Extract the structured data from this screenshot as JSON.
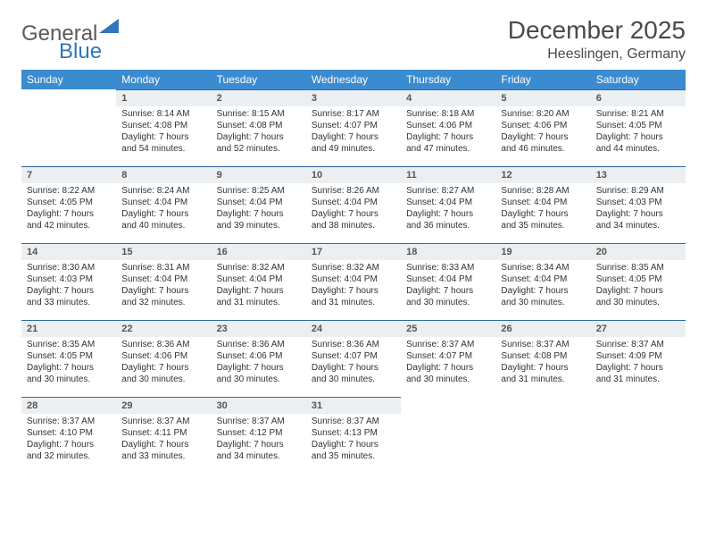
{
  "logo": {
    "general": "General",
    "blue": "Blue"
  },
  "header": {
    "title": "December 2025",
    "location": "Heeslingen, Germany"
  },
  "colors": {
    "header_bg": "#3b8bd0",
    "daynum_bg": "#eceff1",
    "row_divider": "#2f6aa5",
    "logo_gray": "#5a5a5a",
    "logo_blue": "#2f76bb"
  },
  "weekdays": [
    "Sunday",
    "Monday",
    "Tuesday",
    "Wednesday",
    "Thursday",
    "Friday",
    "Saturday"
  ],
  "weeks": [
    [
      {
        "day": "",
        "sunrise": "",
        "sunset": "",
        "daylight": ""
      },
      {
        "day": "1",
        "sunrise": "Sunrise: 8:14 AM",
        "sunset": "Sunset: 4:08 PM",
        "daylight": "Daylight: 7 hours and 54 minutes."
      },
      {
        "day": "2",
        "sunrise": "Sunrise: 8:15 AM",
        "sunset": "Sunset: 4:08 PM",
        "daylight": "Daylight: 7 hours and 52 minutes."
      },
      {
        "day": "3",
        "sunrise": "Sunrise: 8:17 AM",
        "sunset": "Sunset: 4:07 PM",
        "daylight": "Daylight: 7 hours and 49 minutes."
      },
      {
        "day": "4",
        "sunrise": "Sunrise: 8:18 AM",
        "sunset": "Sunset: 4:06 PM",
        "daylight": "Daylight: 7 hours and 47 minutes."
      },
      {
        "day": "5",
        "sunrise": "Sunrise: 8:20 AM",
        "sunset": "Sunset: 4:06 PM",
        "daylight": "Daylight: 7 hours and 46 minutes."
      },
      {
        "day": "6",
        "sunrise": "Sunrise: 8:21 AM",
        "sunset": "Sunset: 4:05 PM",
        "daylight": "Daylight: 7 hours and 44 minutes."
      }
    ],
    [
      {
        "day": "7",
        "sunrise": "Sunrise: 8:22 AM",
        "sunset": "Sunset: 4:05 PM",
        "daylight": "Daylight: 7 hours and 42 minutes."
      },
      {
        "day": "8",
        "sunrise": "Sunrise: 8:24 AM",
        "sunset": "Sunset: 4:04 PM",
        "daylight": "Daylight: 7 hours and 40 minutes."
      },
      {
        "day": "9",
        "sunrise": "Sunrise: 8:25 AM",
        "sunset": "Sunset: 4:04 PM",
        "daylight": "Daylight: 7 hours and 39 minutes."
      },
      {
        "day": "10",
        "sunrise": "Sunrise: 8:26 AM",
        "sunset": "Sunset: 4:04 PM",
        "daylight": "Daylight: 7 hours and 38 minutes."
      },
      {
        "day": "11",
        "sunrise": "Sunrise: 8:27 AM",
        "sunset": "Sunset: 4:04 PM",
        "daylight": "Daylight: 7 hours and 36 minutes."
      },
      {
        "day": "12",
        "sunrise": "Sunrise: 8:28 AM",
        "sunset": "Sunset: 4:04 PM",
        "daylight": "Daylight: 7 hours and 35 minutes."
      },
      {
        "day": "13",
        "sunrise": "Sunrise: 8:29 AM",
        "sunset": "Sunset: 4:03 PM",
        "daylight": "Daylight: 7 hours and 34 minutes."
      }
    ],
    [
      {
        "day": "14",
        "sunrise": "Sunrise: 8:30 AM",
        "sunset": "Sunset: 4:03 PM",
        "daylight": "Daylight: 7 hours and 33 minutes."
      },
      {
        "day": "15",
        "sunrise": "Sunrise: 8:31 AM",
        "sunset": "Sunset: 4:04 PM",
        "daylight": "Daylight: 7 hours and 32 minutes."
      },
      {
        "day": "16",
        "sunrise": "Sunrise: 8:32 AM",
        "sunset": "Sunset: 4:04 PM",
        "daylight": "Daylight: 7 hours and 31 minutes."
      },
      {
        "day": "17",
        "sunrise": "Sunrise: 8:32 AM",
        "sunset": "Sunset: 4:04 PM",
        "daylight": "Daylight: 7 hours and 31 minutes."
      },
      {
        "day": "18",
        "sunrise": "Sunrise: 8:33 AM",
        "sunset": "Sunset: 4:04 PM",
        "daylight": "Daylight: 7 hours and 30 minutes."
      },
      {
        "day": "19",
        "sunrise": "Sunrise: 8:34 AM",
        "sunset": "Sunset: 4:04 PM",
        "daylight": "Daylight: 7 hours and 30 minutes."
      },
      {
        "day": "20",
        "sunrise": "Sunrise: 8:35 AM",
        "sunset": "Sunset: 4:05 PM",
        "daylight": "Daylight: 7 hours and 30 minutes."
      }
    ],
    [
      {
        "day": "21",
        "sunrise": "Sunrise: 8:35 AM",
        "sunset": "Sunset: 4:05 PM",
        "daylight": "Daylight: 7 hours and 30 minutes."
      },
      {
        "day": "22",
        "sunrise": "Sunrise: 8:36 AM",
        "sunset": "Sunset: 4:06 PM",
        "daylight": "Daylight: 7 hours and 30 minutes."
      },
      {
        "day": "23",
        "sunrise": "Sunrise: 8:36 AM",
        "sunset": "Sunset: 4:06 PM",
        "daylight": "Daylight: 7 hours and 30 minutes."
      },
      {
        "day": "24",
        "sunrise": "Sunrise: 8:36 AM",
        "sunset": "Sunset: 4:07 PM",
        "daylight": "Daylight: 7 hours and 30 minutes."
      },
      {
        "day": "25",
        "sunrise": "Sunrise: 8:37 AM",
        "sunset": "Sunset: 4:07 PM",
        "daylight": "Daylight: 7 hours and 30 minutes."
      },
      {
        "day": "26",
        "sunrise": "Sunrise: 8:37 AM",
        "sunset": "Sunset: 4:08 PM",
        "daylight": "Daylight: 7 hours and 31 minutes."
      },
      {
        "day": "27",
        "sunrise": "Sunrise: 8:37 AM",
        "sunset": "Sunset: 4:09 PM",
        "daylight": "Daylight: 7 hours and 31 minutes."
      }
    ],
    [
      {
        "day": "28",
        "sunrise": "Sunrise: 8:37 AM",
        "sunset": "Sunset: 4:10 PM",
        "daylight": "Daylight: 7 hours and 32 minutes."
      },
      {
        "day": "29",
        "sunrise": "Sunrise: 8:37 AM",
        "sunset": "Sunset: 4:11 PM",
        "daylight": "Daylight: 7 hours and 33 minutes."
      },
      {
        "day": "30",
        "sunrise": "Sunrise: 8:37 AM",
        "sunset": "Sunset: 4:12 PM",
        "daylight": "Daylight: 7 hours and 34 minutes."
      },
      {
        "day": "31",
        "sunrise": "Sunrise: 8:37 AM",
        "sunset": "Sunset: 4:13 PM",
        "daylight": "Daylight: 7 hours and 35 minutes."
      },
      {
        "day": "",
        "sunrise": "",
        "sunset": "",
        "daylight": ""
      },
      {
        "day": "",
        "sunrise": "",
        "sunset": "",
        "daylight": ""
      },
      {
        "day": "",
        "sunrise": "",
        "sunset": "",
        "daylight": ""
      }
    ]
  ]
}
